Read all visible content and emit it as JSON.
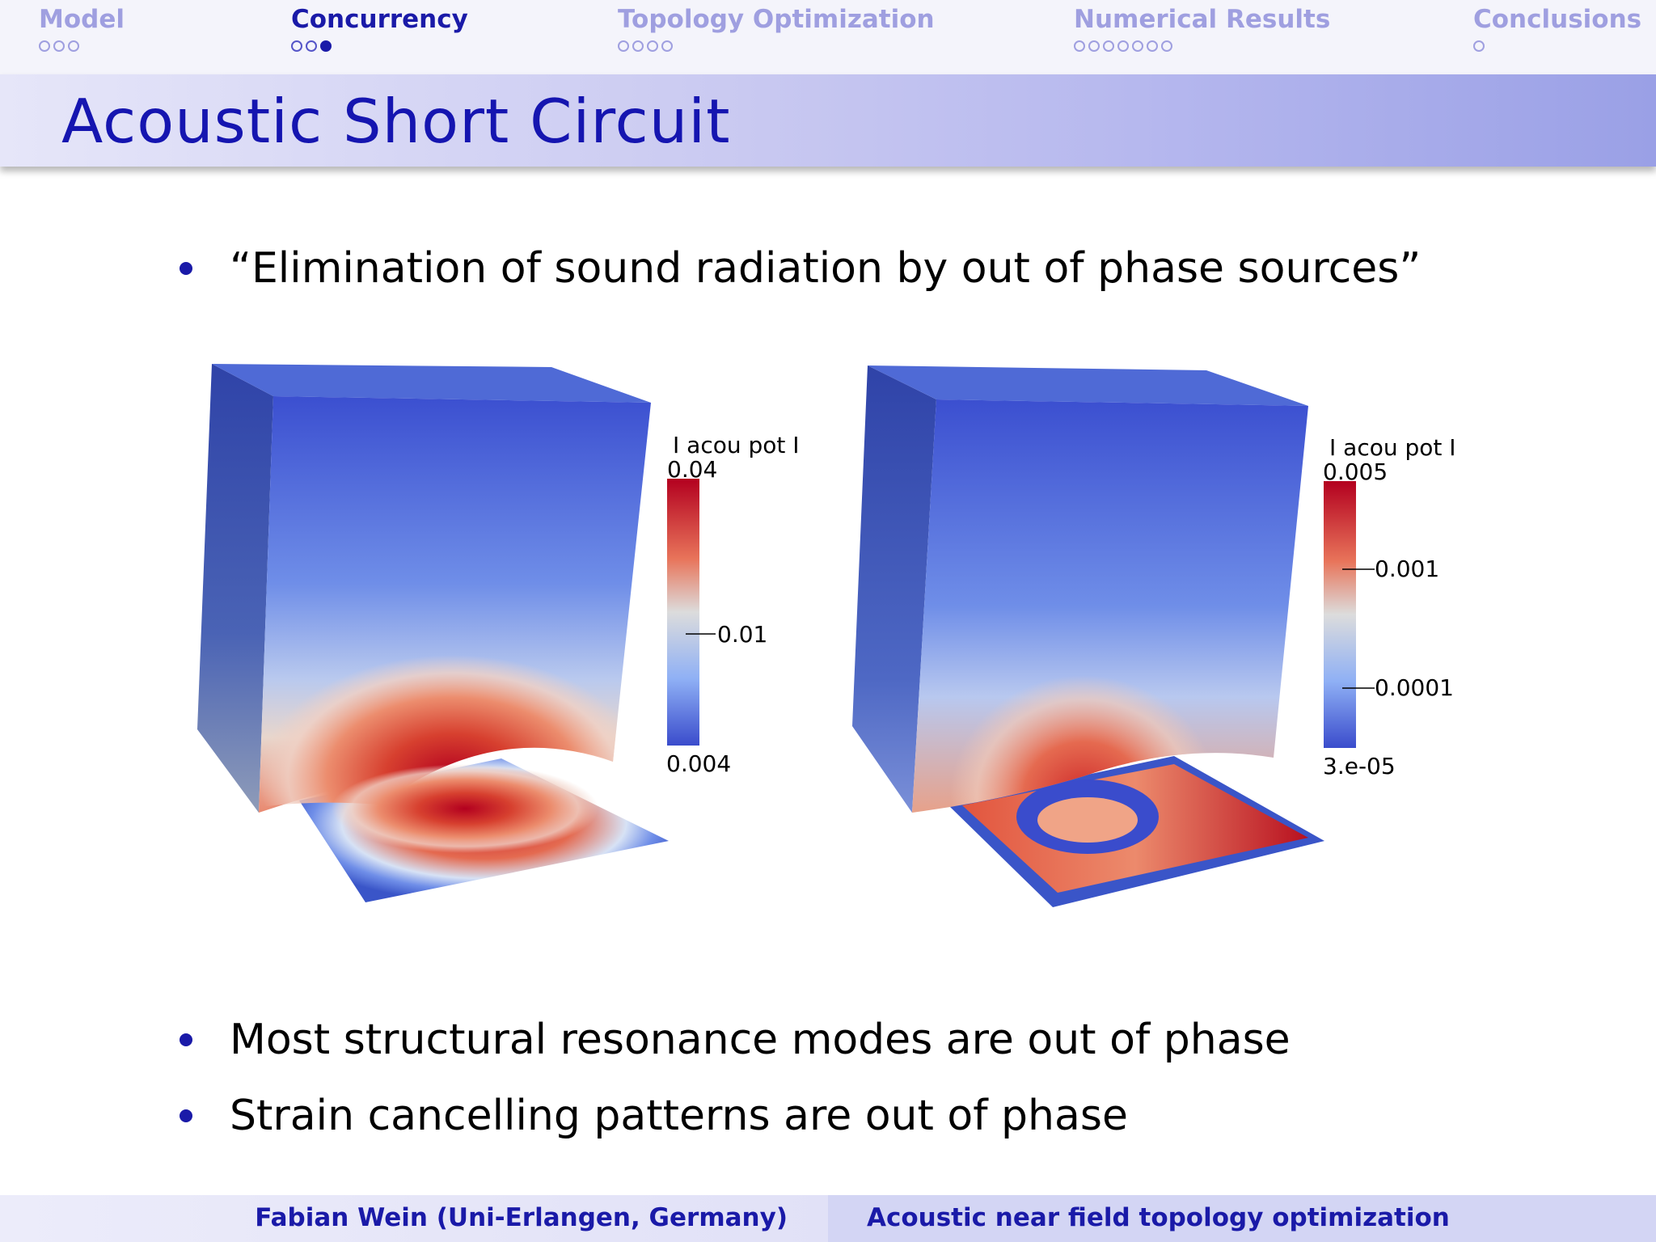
{
  "nav": {
    "sections": [
      {
        "title": "Model",
        "dots": 3,
        "filled": -1,
        "active": false
      },
      {
        "title": "Concurrency",
        "dots": 3,
        "filled": 2,
        "active": true
      },
      {
        "title": "Topology Optimization",
        "dots": 4,
        "filled": -1,
        "active": false
      },
      {
        "title": "Numerical Results",
        "dots": 7,
        "filled": -1,
        "active": false
      },
      {
        "title": "Conclusions",
        "dots": 1,
        "filled": -1,
        "active": false
      }
    ]
  },
  "slide": {
    "title": "Acoustic Short Circuit",
    "bullets_top": [
      "“Elimination of sound radiation by out of phase sources”"
    ],
    "bullets_bottom": [
      "Most structural resonance modes are out of phase",
      "Strain cancelling patterns are out of phase"
    ]
  },
  "figures": [
    {
      "colorbar": {
        "title": "I acou pot I",
        "max_label": "0.04",
        "mid_labels": [
          "0.01"
        ],
        "min_label": "0.004"
      }
    },
    {
      "colorbar": {
        "title": "I acou pot I",
        "max_label": "0.005",
        "mid_labels": [
          "0.001",
          "0.0001"
        ],
        "min_label": "3.e-05"
      }
    }
  ],
  "colors": {
    "accent": "#1a1aa8",
    "field_low": "#3a55c8",
    "field_high": "#b3001f"
  },
  "footer": {
    "author": "Fabian Wein (Uni-Erlangen, Germany)",
    "talk_title": "Acoustic near field topology optimization"
  }
}
